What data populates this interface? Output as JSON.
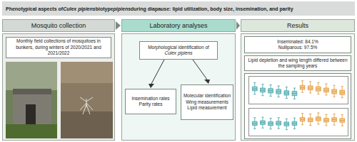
{
  "title": [
    {
      "text": "Phenotypical aspects of "
    },
    {
      "text": "Culex pipiens",
      "italic": true
    },
    {
      "text": " biotype "
    },
    {
      "text": "pipiens",
      "italic": true
    },
    {
      "text": " during diapause: lipid utilization, body size, insemination, and parity"
    }
  ],
  "panels": [
    {
      "header": "Mosquito collection",
      "text": "Monthly field collections of mosquitoes in bunkers, during winters of 2020/2021 and 2021/2022"
    },
    {
      "header": "Laboratory analyses",
      "identification": [
        {
          "text": "Morphological identification of "
        },
        {
          "text": "Culex pipiens",
          "italic": true
        }
      ],
      "left_list": [
        "Insemination rates",
        "Parity rates"
      ],
      "right_list": [
        "Molecular identification",
        "Wing measurements",
        "Lipid measurement"
      ]
    },
    {
      "header": "Results",
      "rates": [
        "Inseminated: 84.1%",
        "Nulliparous: 97.5%"
      ],
      "finding": "Lipid depletion and wing length differed between the sampling years"
    }
  ],
  "chart_data": [
    {
      "type": "box",
      "tick_labels": false,
      "grid": false,
      "xlim": [
        -0.7,
        11.7
      ],
      "ylim": [
        0,
        100
      ],
      "series": [
        {
          "color": "#3a9fa5",
          "x": [
            0,
            1,
            2,
            3,
            4,
            5
          ],
          "min": [
            35,
            30,
            28,
            25,
            20,
            18
          ],
          "q1": [
            48,
            43,
            40,
            37,
            32,
            30
          ],
          "median": [
            55,
            50,
            48,
            45,
            40,
            38
          ],
          "q3": [
            63,
            58,
            56,
            53,
            48,
            46
          ],
          "max": [
            78,
            72,
            70,
            66,
            62,
            58
          ]
        },
        {
          "color": "#e0952e",
          "x": [
            6,
            7,
            8,
            9,
            10,
            11
          ],
          "min": [
            42,
            40,
            36,
            32,
            26,
            22
          ],
          "q1": [
            53,
            51,
            47,
            43,
            37,
            34
          ],
          "median": [
            60,
            58,
            55,
            50,
            45,
            42
          ],
          "q3": [
            68,
            66,
            63,
            58,
            53,
            50
          ],
          "max": [
            85,
            82,
            78,
            74,
            68,
            64
          ]
        }
      ]
    },
    {
      "type": "box",
      "tick_labels": false,
      "grid": false,
      "xlim": [
        -0.7,
        11.7
      ],
      "ylim": [
        0,
        100
      ],
      "series": [
        {
          "color": "#3a9fa5",
          "x": [
            0,
            1,
            2,
            3,
            4,
            5
          ],
          "min": [
            25,
            28,
            24,
            26,
            22,
            25
          ],
          "q1": [
            38,
            41,
            37,
            39,
            36,
            38
          ],
          "median": [
            45,
            48,
            44,
            46,
            43,
            45
          ],
          "q3": [
            52,
            55,
            51,
            53,
            50,
            52
          ],
          "max": [
            66,
            68,
            64,
            66,
            62,
            65
          ]
        },
        {
          "color": "#e0952e",
          "x": [
            6,
            7,
            8,
            9,
            10,
            11
          ],
          "min": [
            40,
            38,
            42,
            37,
            39,
            36
          ],
          "q1": [
            53,
            51,
            55,
            50,
            52,
            49
          ],
          "median": [
            60,
            58,
            62,
            57,
            59,
            56
          ],
          "q3": [
            67,
            65,
            69,
            64,
            66,
            63
          ],
          "max": [
            82,
            80,
            84,
            78,
            80,
            77
          ]
        }
      ]
    }
  ]
}
